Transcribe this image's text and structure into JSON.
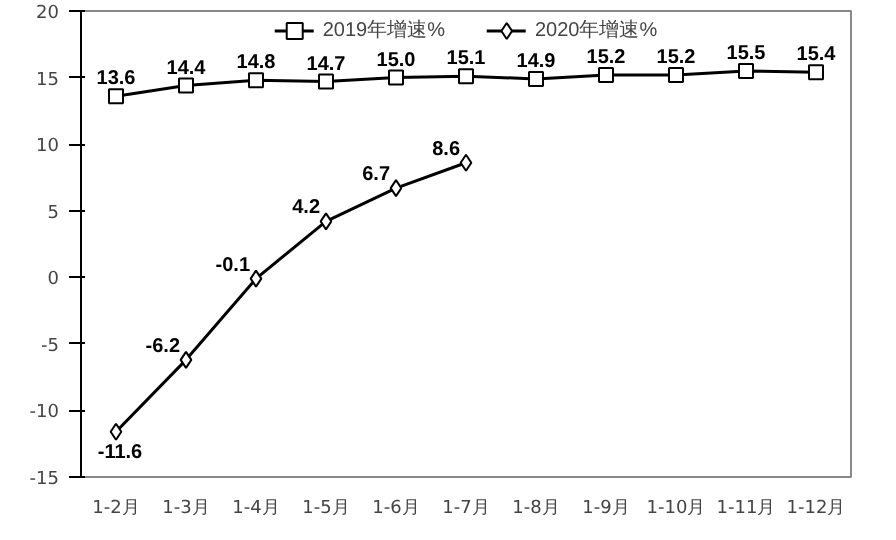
{
  "chart_data": {
    "type": "line",
    "categories": [
      "1-2月",
      "1-3月",
      "1-4月",
      "1-5月",
      "1-6月",
      "1-7月",
      "1-8月",
      "1-9月",
      "1-10月",
      "1-11月",
      "1-12月"
    ],
    "series": [
      {
        "name": "2019年增速%",
        "color": "#000000",
        "marker": "square",
        "values": [
          13.6,
          14.4,
          14.8,
          14.7,
          15.0,
          15.1,
          14.9,
          15.2,
          15.2,
          15.5,
          15.4
        ],
        "value_labels": [
          "13.6",
          "14.4",
          "14.8",
          "14.7",
          "15.0",
          "15.1",
          "14.9",
          "15.2",
          "15.2",
          "15.5",
          "15.4"
        ]
      },
      {
        "name": "2020年增速%",
        "color": "#000000",
        "marker": "diamond",
        "values": [
          -11.6,
          -6.2,
          -0.1,
          4.2,
          6.7,
          8.6,
          null,
          null,
          null,
          null,
          null
        ],
        "value_labels": [
          "-11.6",
          "-6.2",
          "-0.1",
          "4.2",
          "6.7",
          "8.6",
          null,
          null,
          null,
          null,
          null
        ]
      }
    ],
    "ylim": [
      -15,
      20
    ],
    "yticks": [
      -15,
      -10,
      -5,
      0,
      5,
      10,
      15,
      20
    ],
    "grid": false,
    "legend": "top"
  }
}
